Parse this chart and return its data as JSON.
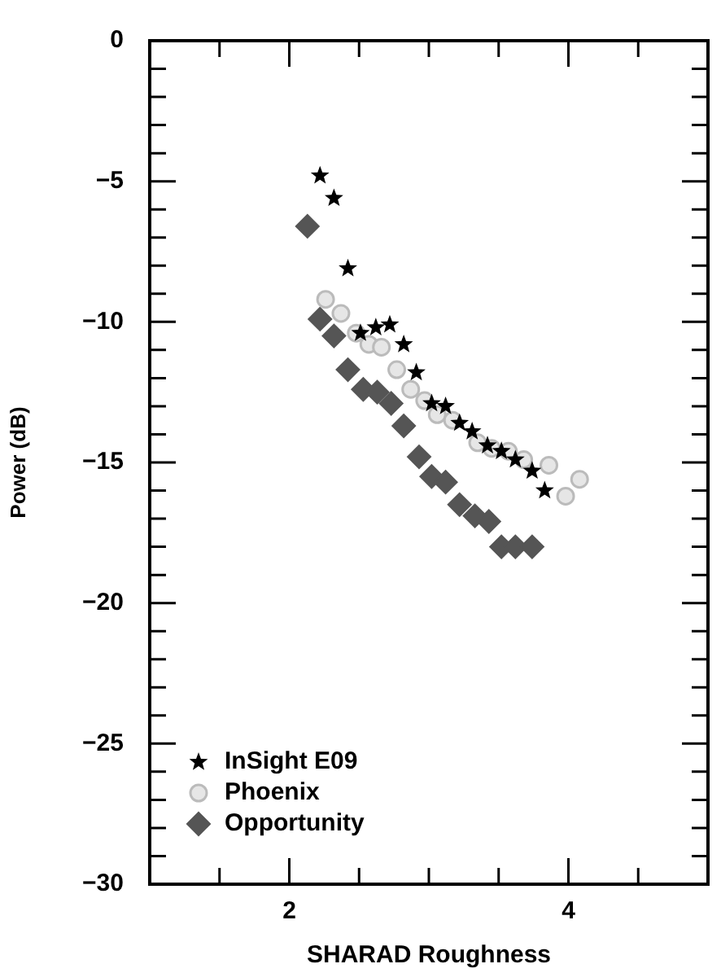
{
  "chart_data": {
    "type": "scatter",
    "xlabel": "SHARAD Roughness",
    "ylabel": "Power (dB)",
    "xlim": [
      1,
      5
    ],
    "xticks": [
      {
        "value": 1.5,
        "label": null
      },
      2,
      {
        "value": 2.5,
        "label": null
      },
      {
        "value": 3,
        "label": null
      },
      {
        "value": 3.5,
        "label": null
      },
      4,
      {
        "value": 4.5,
        "label": null
      }
    ],
    "ylim": [
      -30,
      0
    ],
    "yticks": [
      -30,
      {
        "value": -29,
        "label": null
      },
      {
        "value": -28,
        "label": null
      },
      {
        "value": -27,
        "label": null
      },
      {
        "value": -26,
        "label": null
      },
      -25,
      {
        "value": -24,
        "label": null
      },
      {
        "value": -23,
        "label": null
      },
      {
        "value": -22,
        "label": null
      },
      {
        "value": -21,
        "label": null
      },
      -20,
      {
        "value": -19,
        "label": null
      },
      {
        "value": -18,
        "label": null
      },
      {
        "value": -17,
        "label": null
      },
      {
        "value": -16,
        "label": null
      },
      -15,
      {
        "value": -14,
        "label": null
      },
      {
        "value": -13,
        "label": null
      },
      {
        "value": -12,
        "label": null
      },
      {
        "value": -11,
        "label": null
      },
      -10,
      {
        "value": -9,
        "label": null
      },
      {
        "value": -8,
        "label": null
      },
      {
        "value": -7,
        "label": null
      },
      {
        "value": -6,
        "label": null
      },
      -5,
      {
        "value": -4,
        "label": null
      },
      {
        "value": -3,
        "label": null
      },
      {
        "value": -2,
        "label": null
      },
      {
        "value": -1,
        "label": null
      },
      0
    ],
    "grid": false,
    "legend": "bottom left",
    "series": [
      {
        "name": "InSight E09",
        "color": "#000000",
        "marker": "star",
        "x": [
          2.22,
          2.32,
          2.42,
          2.51,
          2.62,
          2.72,
          2.82,
          2.91,
          3.02,
          3.12,
          3.22,
          3.31,
          3.42,
          3.52,
          3.62,
          3.74,
          3.83
        ],
        "values": [
          -4.8,
          -5.6,
          -8.1,
          -10.4,
          -10.2,
          -10.1,
          -10.8,
          -11.8,
          -12.9,
          -13.0,
          -13.6,
          -13.9,
          -14.4,
          -14.6,
          -14.9,
          -15.3,
          -16.0
        ]
      },
      {
        "name": "Phoenix",
        "color": "#bbbbbb",
        "marker": "circle",
        "x": [
          2.26,
          2.37,
          2.48,
          2.57,
          2.66,
          2.77,
          2.87,
          2.97,
          3.06,
          3.17,
          3.35,
          3.45,
          3.57,
          3.68,
          3.86,
          4.08,
          3.98
        ],
        "values": [
          -9.2,
          -9.7,
          -10.4,
          -10.8,
          -10.9,
          -11.7,
          -12.4,
          -12.8,
          -13.3,
          -13.5,
          -14.3,
          -14.5,
          -14.6,
          -14.9,
          -15.1,
          -15.6,
          -16.2
        ]
      },
      {
        "name": "Opportunity",
        "color": "#555555",
        "marker": "diamond",
        "x": [
          2.13,
          2.22,
          2.32,
          2.42,
          2.53,
          2.63,
          2.73,
          2.82,
          2.93,
          3.02,
          3.12,
          3.22,
          3.33,
          3.43,
          3.52,
          3.62,
          3.74
        ],
        "values": [
          -6.6,
          -9.9,
          -10.5,
          -11.7,
          -12.4,
          -12.5,
          -12.9,
          -13.7,
          -14.8,
          -15.5,
          -15.7,
          -16.5,
          -16.9,
          -17.1,
          -18.0,
          -18.0,
          -18.0
        ]
      }
    ]
  }
}
